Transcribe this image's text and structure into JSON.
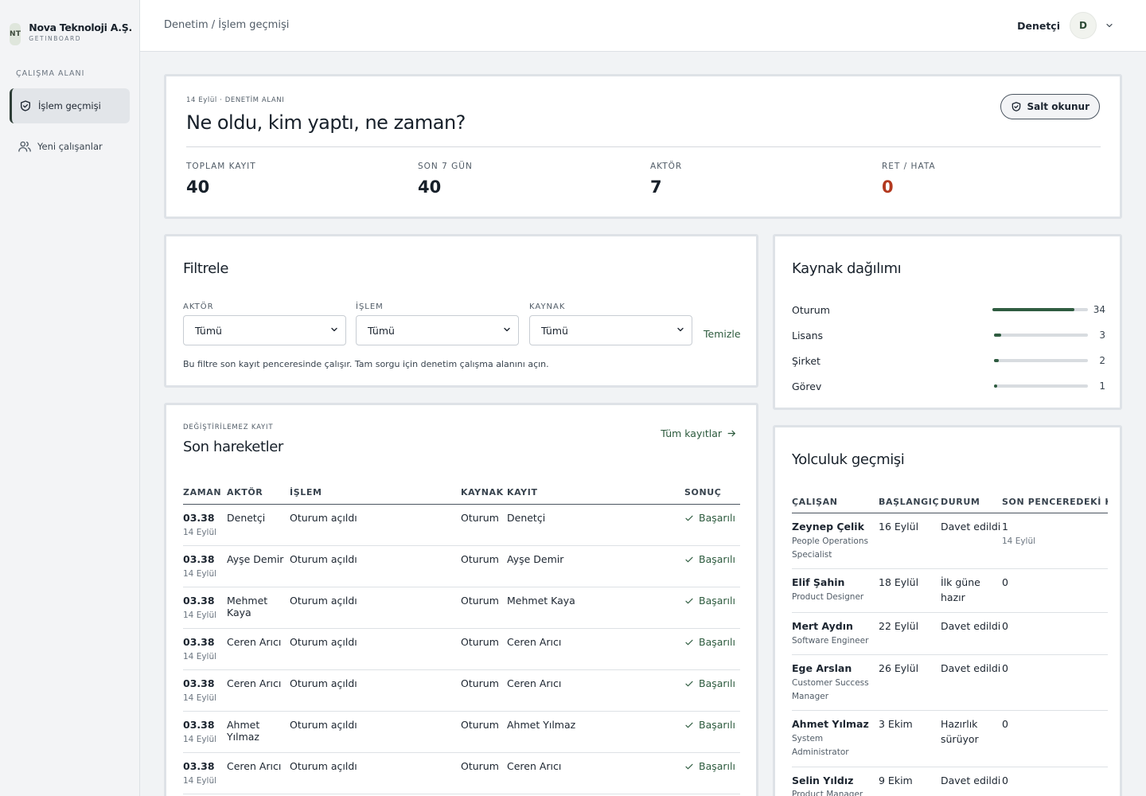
{
  "brand": {
    "logo": "NT",
    "name": "Nova Teknoloji A.Ş.",
    "sub": "GETINBOARD"
  },
  "sidebar": {
    "section": "ÇALIŞMA ALANI",
    "items": [
      {
        "label": "İşlem geçmişi",
        "icon": "shield-check-icon",
        "active": true
      },
      {
        "label": "Yeni çalışanlar",
        "icon": "users-icon",
        "active": false
      }
    ]
  },
  "topbar": {
    "breadcrumb": "Denetim / İşlem geçmişi",
    "user_name": "Denetçi",
    "avatar": "D"
  },
  "hero": {
    "eyebrow": "14 Eylül · DENETİM ALANI",
    "title": "Ne oldu, kim yaptı, ne zaman?",
    "readonly_label": "Salt okunur",
    "stats": [
      {
        "label": "TOPLAM KAYIT",
        "value": "40"
      },
      {
        "label": "SON 7 GÜN",
        "value": "40"
      },
      {
        "label": "AKTÖR",
        "value": "7"
      },
      {
        "label": "RET / HATA",
        "value": "0"
      }
    ]
  },
  "filter": {
    "title": "Filtrele",
    "fields": [
      {
        "label": "AKTÖR",
        "value": "Tümü"
      },
      {
        "label": "İŞLEM",
        "value": "Tümü"
      },
      {
        "label": "KAYNAK",
        "value": "Tümü"
      }
    ],
    "clear_label": "Temizle",
    "note": "Bu filtre son kayıt penceresinde çalışır. Tam sorgu için denetim çalışma alanını açın."
  },
  "sources": {
    "title": "Kaynak dağılımı",
    "items": [
      {
        "name": "Oturum",
        "count": "34",
        "value": 34
      },
      {
        "name": "Lisans",
        "count": "3",
        "value": 3
      },
      {
        "name": "Şirket",
        "count": "2",
        "value": 2
      },
      {
        "name": "Görev",
        "count": "1",
        "value": 1
      }
    ],
    "accent": "#2f5c40"
  },
  "recent": {
    "eyebrow": "DEĞİŞTİRİLEMEZ KAYIT",
    "title": "Son hareketler",
    "all_label": "Tüm kayıtlar",
    "columns": [
      "ZAMAN",
      "AKTÖR",
      "İŞLEM",
      "KAYNAK",
      "KAYIT",
      "SONUÇ"
    ],
    "rows": [
      {
        "time": "03.38",
        "date": "14 Eylül",
        "actor": "Denetçi",
        "action": "Oturum açıldı",
        "source": "Oturum",
        "record": "Denetçi",
        "result": "Başarılı"
      },
      {
        "time": "03.38",
        "date": "14 Eylül",
        "actor": "Ayşe Demir",
        "action": "Oturum açıldı",
        "source": "Oturum",
        "record": "Ayşe Demir",
        "result": "Başarılı"
      },
      {
        "time": "03.38",
        "date": "14 Eylül",
        "actor": "Mehmet Kaya",
        "action": "Oturum açıldı",
        "source": "Oturum",
        "record": "Mehmet Kaya",
        "result": "Başarılı"
      },
      {
        "time": "03.38",
        "date": "14 Eylül",
        "actor": "Ceren Arıcı",
        "action": "Oturum açıldı",
        "source": "Oturum",
        "record": "Ceren Arıcı",
        "result": "Başarılı"
      },
      {
        "time": "03.38",
        "date": "14 Eylül",
        "actor": "Ceren Arıcı",
        "action": "Oturum açıldı",
        "source": "Oturum",
        "record": "Ceren Arıcı",
        "result": "Başarılı"
      },
      {
        "time": "03.38",
        "date": "14 Eylül",
        "actor": "Ahmet Yılmaz",
        "action": "Oturum açıldı",
        "source": "Oturum",
        "record": "Ahmet Yılmaz",
        "result": "Başarılı"
      },
      {
        "time": "03.38",
        "date": "14 Eylül",
        "actor": "Ceren Arıcı",
        "action": "Oturum açıldı",
        "source": "Oturum",
        "record": "Ceren Arıcı",
        "result": "Başarılı"
      }
    ]
  },
  "journey": {
    "title": "Yolculuk geçmişi",
    "columns": [
      "ÇALIŞAN",
      "BAŞLANGIÇ",
      "DURUM",
      "SON PENCEREDEKİ KAYIT"
    ],
    "rows": [
      {
        "name": "Zeynep Çelik",
        "role": "People Operations Specialist",
        "start": "16 Eylül",
        "status": "Davet edildi",
        "count": "1",
        "count_date": "14 Eylül"
      },
      {
        "name": "Elif Şahin",
        "role": "Product Designer",
        "start": "18 Eylül",
        "status": "İlk güne hazır",
        "count": "0",
        "count_date": ""
      },
      {
        "name": "Mert Aydın",
        "role": "Software Engineer",
        "start": "22 Eylül",
        "status": "Davet edildi",
        "count": "0",
        "count_date": ""
      },
      {
        "name": "Ege Arslan",
        "role": "Customer Success Manager",
        "start": "26 Eylül",
        "status": "Davet edildi",
        "count": "0",
        "count_date": ""
      },
      {
        "name": "Ahmet Yılmaz",
        "role": "System Administrator",
        "start": "3 Ekim",
        "status": "Hazırlık sürüyor",
        "count": "0",
        "count_date": ""
      },
      {
        "name": "Selin Yıldız",
        "role": "Product Manager",
        "start": "9 Ekim",
        "status": "Davet edildi",
        "count": "0",
        "count_date": ""
      }
    ]
  },
  "colors": {
    "accent": "#2c5a3d",
    "danger": "#b3391f"
  }
}
